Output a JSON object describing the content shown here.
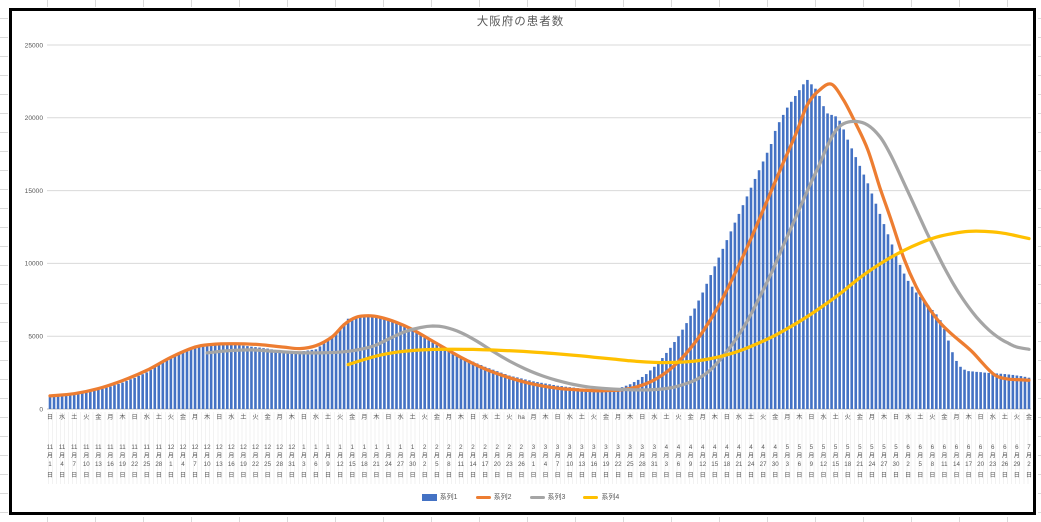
{
  "chart": {
    "container": "excel-worksheet",
    "selected_object": "chart"
  },
  "chart_data": {
    "type": "combo",
    "title": "大阪府の患者数",
    "grid": "horizontal",
    "legend_position": "bottom",
    "colors": {
      "bar_blue": "#4472C4",
      "line_orange": "#ED7D31",
      "line_gray": "#A5A5A5",
      "line_yellow": "#FFC000",
      "gridline": "#D9D9D9",
      "axis_text": "#595959",
      "chart_border": "#000000"
    },
    "y_axis": {
      "min": 0,
      "max": 25000,
      "tick_step": 5000,
      "tick_labels": [
        "0",
        "5000",
        "10000",
        "15000",
        "20000",
        "25000"
      ]
    },
    "x_axis": {
      "unit": "day",
      "label_every_days": 3,
      "first_label": "日 11月1日",
      "last_label": "金 7月2日",
      "tick_labels": [
        "日 11月1日",
        "水 11月4日",
        "土 11月7日",
        "火 11月10日",
        "金 11月13日",
        "月 11月16日",
        "木 11月19日",
        "日 11月22日",
        "水 11月25日",
        "土 11月28日",
        "火 12月1日",
        "金 12月4日",
        "月 12月7日",
        "木 12月10日",
        "日 12月13日",
        "水 12月16日",
        "土 12月19日",
        "火 12月22日",
        "金 12月25日",
        "月 12月28日",
        "木 12月31日",
        "日 1月3日",
        "水 1月6日",
        "土 1月9日",
        "火 1月12日",
        "金 1月15日",
        "月 1月18日",
        "木 1月21日",
        "日 1月24日",
        "水 1月27日",
        "土 1月30日",
        "火 2月2日",
        "金 2月5日",
        "月 2月8日",
        "木 2月11日",
        "日 2月14日",
        "水 2月17日",
        "土 2月20日",
        "火 2月23日",
        "ha 2月26日",
        "月 3月1日",
        "木 3月4日",
        "日 3月7日",
        "水 3月10日",
        "土 3月13日",
        "火 3月16日",
        "金 3月19日",
        "月 3月22日",
        "木 3月25日",
        "日 3月28日",
        "水 3月31日",
        "土 4月3日",
        "火 4月6日",
        "金 4月9日",
        "月 4月12日",
        "木 4月15日",
        "日 4月18日",
        "水 4月21日",
        "土 4月24日",
        "火 4月27日",
        "金 4月30日",
        "月 5月3日",
        "木 5月6日",
        "日 5月9日",
        "水 5月12日",
        "土 5月15日",
        "火 5月18日",
        "金 5月21日",
        "月 5月24日",
        "木 5月27日",
        "日 5月30日",
        "水 6月2日",
        "土 6月5日",
        "火 6月8日",
        "金 6月11日",
        "月 6月14日",
        "木 6月17日",
        "日 6月20日",
        "水 6月23日",
        "土 6月26日",
        "火 6月29日",
        "金 7月2日"
      ]
    },
    "series": [
      {
        "name": "系列1",
        "type": "bar",
        "color": "#4472C4",
        "values": [
          900,
          920,
          930,
          960,
          980,
          1000,
          1010,
          1060,
          1100,
          1140,
          1200,
          1260,
          1310,
          1390,
          1470,
          1540,
          1640,
          1720,
          1810,
          1920,
          2040,
          2140,
          2280,
          2390,
          2510,
          2690,
          2860,
          3060,
          3240,
          3430,
          3610,
          3720,
          3840,
          3960,
          4070,
          4190,
          4310,
          4340,
          4370,
          4400,
          4440,
          4470,
          4500,
          4480,
          4450,
          4430,
          4400,
          4380,
          4350,
          4320,
          4280,
          4250,
          4220,
          4180,
          4150,
          4100,
          4050,
          4000,
          3950,
          3900,
          3850,
          3890,
          3930,
          3980,
          4020,
          4060,
          4100,
          4300,
          4500,
          4700,
          4910,
          5230,
          5550,
          5880,
          6200,
          6250,
          6300,
          6350,
          6400,
          6360,
          6330,
          6290,
          6250,
          6160,
          6080,
          5990,
          5900,
          5780,
          5650,
          5530,
          5400,
          5230,
          5070,
          4900,
          4730,
          4570,
          4400,
          4270,
          4130,
          4000,
          3870,
          3730,
          3600,
          3480,
          3370,
          3250,
          3130,
          3020,
          2900,
          2800,
          2700,
          2600,
          2500,
          2400,
          2300,
          2230,
          2170,
          2100,
          2030,
          1970,
          1900,
          1850,
          1800,
          1750,
          1700,
          1650,
          1600,
          1570,
          1530,
          1500,
          1470,
          1430,
          1400,
          1390,
          1370,
          1360,
          1350,
          1330,
          1320,
          1340,
          1350,
          1430,
          1500,
          1600,
          1700,
          1850,
          2000,
          2200,
          2400,
          2650,
          2900,
          3200,
          3500,
          3850,
          4200,
          4600,
          5000,
          5450,
          5900,
          6400,
          6900,
          7450,
          8000,
          8600,
          9200,
          9800,
          10400,
          11000,
          11600,
          12200,
          12800,
          13400,
          14000,
          14600,
          15200,
          15800,
          16400,
          17000,
          17600,
          18200,
          19100,
          19700,
          20200,
          20700,
          21100,
          21500,
          21900,
          22300,
          22600,
          22300,
          22000,
          21500,
          20800,
          20300,
          20200,
          20100,
          19800,
          19200,
          18500,
          17900,
          17300,
          16700,
          16100,
          15500,
          14800,
          14100,
          13400,
          12700,
          12000,
          11300,
          10600,
          9900,
          9300,
          8800,
          8400,
          8000,
          7700,
          7400,
          7100,
          6800,
          6500,
          6100,
          5500,
          4700,
          3900,
          3300,
          2900,
          2700,
          2600,
          2580,
          2550,
          2530,
          2500,
          2480,
          2460,
          2440,
          2420,
          2400,
          2370,
          2340,
          2300,
          2260,
          2210,
          2150
        ]
      },
      {
        "name": "系列2",
        "type": "line",
        "color": "#ED7D31",
        "points": [
          [
            0,
            900
          ],
          [
            6,
            1050
          ],
          [
            12,
            1400
          ],
          [
            18,
            1950
          ],
          [
            24,
            2650
          ],
          [
            30,
            3550
          ],
          [
            36,
            4250
          ],
          [
            40,
            4430
          ],
          [
            46,
            4480
          ],
          [
            52,
            4420
          ],
          [
            58,
            4250
          ],
          [
            62,
            4150
          ],
          [
            66,
            4350
          ],
          [
            70,
            4950
          ],
          [
            73,
            5800
          ],
          [
            76,
            6300
          ],
          [
            79,
            6400
          ],
          [
            82,
            6300
          ],
          [
            86,
            5950
          ],
          [
            90,
            5450
          ],
          [
            96,
            4500
          ],
          [
            102,
            3550
          ],
          [
            108,
            2750
          ],
          [
            114,
            2150
          ],
          [
            120,
            1700
          ],
          [
            126,
            1420
          ],
          [
            132,
            1300
          ],
          [
            137,
            1260
          ],
          [
            142,
            1320
          ],
          [
            146,
            1550
          ],
          [
            150,
            2000
          ],
          [
            154,
            2750
          ],
          [
            158,
            3850
          ],
          [
            162,
            5300
          ],
          [
            166,
            7100
          ],
          [
            170,
            9300
          ],
          [
            174,
            11700
          ],
          [
            178,
            14300
          ],
          [
            182,
            16900
          ],
          [
            185,
            18800
          ],
          [
            188,
            20900
          ],
          [
            191,
            21900
          ],
          [
            194,
            22300
          ],
          [
            197,
            21200
          ],
          [
            200,
            19600
          ],
          [
            203,
            17800
          ],
          [
            206,
            15200
          ],
          [
            209,
            12800
          ],
          [
            212,
            10300
          ],
          [
            215,
            8400
          ],
          [
            218,
            7000
          ],
          [
            221,
            5900
          ],
          [
            224,
            5100
          ],
          [
            227,
            4400
          ],
          [
            229,
            3900
          ],
          [
            231,
            3300
          ],
          [
            233,
            2700
          ],
          [
            235,
            2250
          ],
          [
            238,
            2050
          ],
          [
            243,
            1980
          ]
        ]
      },
      {
        "name": "系列3",
        "type": "line",
        "color": "#A5A5A5",
        "points": [
          [
            39,
            3850
          ],
          [
            44,
            4000
          ],
          [
            50,
            4060
          ],
          [
            56,
            3960
          ],
          [
            62,
            3870
          ],
          [
            68,
            3860
          ],
          [
            74,
            3960
          ],
          [
            80,
            4300
          ],
          [
            84,
            4800
          ],
          [
            88,
            5300
          ],
          [
            92,
            5600
          ],
          [
            95,
            5700
          ],
          [
            98,
            5620
          ],
          [
            102,
            5250
          ],
          [
            106,
            4650
          ],
          [
            110,
            3950
          ],
          [
            114,
            3300
          ],
          [
            118,
            2750
          ],
          [
            122,
            2300
          ],
          [
            126,
            1950
          ],
          [
            130,
            1680
          ],
          [
            134,
            1500
          ],
          [
            138,
            1400
          ],
          [
            142,
            1340
          ],
          [
            146,
            1310
          ],
          [
            150,
            1330
          ],
          [
            154,
            1450
          ],
          [
            158,
            1750
          ],
          [
            161,
            2100
          ],
          [
            164,
            2700
          ],
          [
            167,
            3600
          ],
          [
            170,
            4700
          ],
          [
            173,
            6000
          ],
          [
            176,
            7600
          ],
          [
            179,
            9300
          ],
          [
            182,
            11200
          ],
          [
            185,
            13100
          ],
          [
            188,
            15000
          ],
          [
            191,
            16800
          ],
          [
            193,
            18100
          ],
          [
            195,
            19100
          ],
          [
            197,
            19600
          ],
          [
            200,
            19750
          ],
          [
            203,
            19500
          ],
          [
            206,
            18700
          ],
          [
            208,
            17800
          ],
          [
            210,
            16700
          ],
          [
            212,
            15500
          ],
          [
            214,
            14300
          ],
          [
            216,
            13100
          ],
          [
            218,
            11900
          ],
          [
            220,
            10800
          ],
          [
            222,
            9700
          ],
          [
            224,
            8700
          ],
          [
            226,
            7800
          ],
          [
            228,
            7000
          ],
          [
            230,
            6300
          ],
          [
            232,
            5700
          ],
          [
            234,
            5200
          ],
          [
            236,
            4800
          ],
          [
            238,
            4500
          ],
          [
            240,
            4250
          ],
          [
            243,
            4100
          ]
        ]
      },
      {
        "name": "系列4",
        "type": "line",
        "color": "#FFC000",
        "points": [
          [
            74,
            3050
          ],
          [
            78,
            3400
          ],
          [
            82,
            3700
          ],
          [
            86,
            3900
          ],
          [
            90,
            4020
          ],
          [
            95,
            4090
          ],
          [
            100,
            4110
          ],
          [
            105,
            4090
          ],
          [
            110,
            4050
          ],
          [
            115,
            3990
          ],
          [
            120,
            3910
          ],
          [
            125,
            3810
          ],
          [
            130,
            3690
          ],
          [
            135,
            3560
          ],
          [
            140,
            3430
          ],
          [
            144,
            3310
          ],
          [
            148,
            3230
          ],
          [
            152,
            3190
          ],
          [
            156,
            3210
          ],
          [
            160,
            3290
          ],
          [
            164,
            3460
          ],
          [
            168,
            3720
          ],
          [
            172,
            4080
          ],
          [
            176,
            4540
          ],
          [
            180,
            5060
          ],
          [
            184,
            5680
          ],
          [
            188,
            6350
          ],
          [
            192,
            7100
          ],
          [
            196,
            7900
          ],
          [
            200,
            8800
          ],
          [
            204,
            9600
          ],
          [
            208,
            10300
          ],
          [
            212,
            10900
          ],
          [
            216,
            11400
          ],
          [
            220,
            11800
          ],
          [
            224,
            12050
          ],
          [
            228,
            12200
          ],
          [
            232,
            12200
          ],
          [
            236,
            12100
          ],
          [
            239,
            11950
          ],
          [
            243,
            11700
          ]
        ]
      }
    ]
  }
}
